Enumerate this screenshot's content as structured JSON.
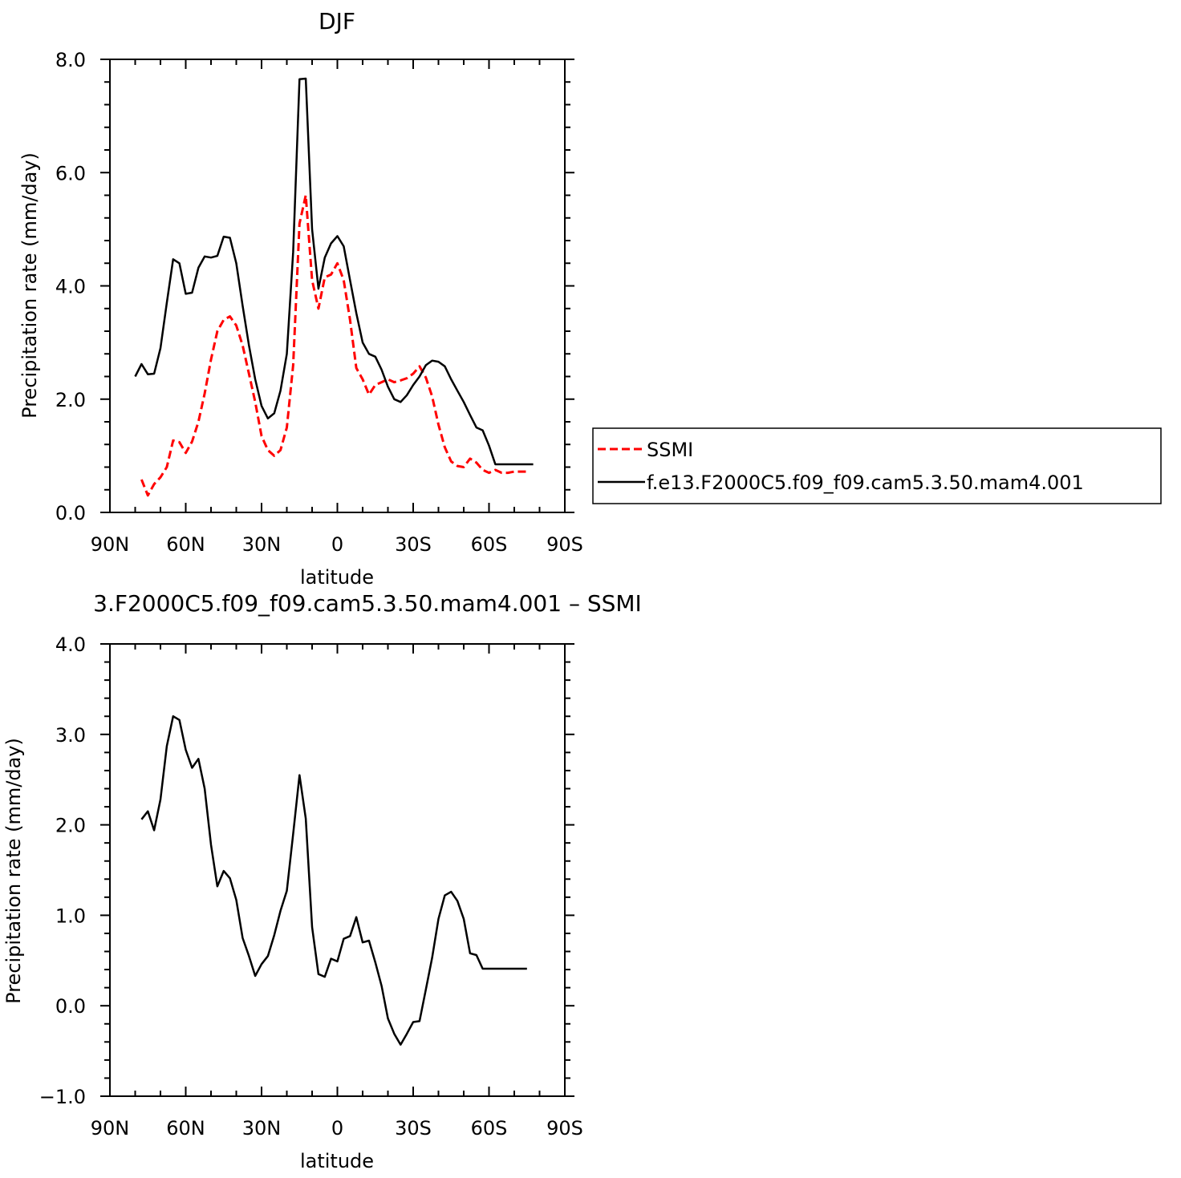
{
  "chart_data": [
    {
      "type": "line",
      "title": "DJF",
      "xlabel": "latitude",
      "ylabel": "Precipitation rate (mm/day)",
      "xlim": [
        90,
        -90
      ],
      "ylim": [
        0,
        8
      ],
      "x_tick_values": [
        90,
        60,
        30,
        0,
        -30,
        -60,
        -90
      ],
      "x_tick_labels": [
        "90N",
        "60N",
        "30N",
        "0",
        "30S",
        "60S",
        "90S"
      ],
      "y_tick_values": [
        0,
        2,
        4,
        6,
        8
      ],
      "y_tick_labels": [
        "0.0",
        "2.0",
        "4.0",
        "6.0",
        "8.0"
      ],
      "legend_position": "right",
      "series": [
        {
          "name": "SSMI",
          "color": "#ff0000",
          "dash": "dashed",
          "x": [
            77.5,
            75,
            72.5,
            70,
            67.5,
            65,
            62.5,
            60,
            57.5,
            55,
            52.5,
            50,
            47.5,
            45,
            42.5,
            40,
            37.5,
            35,
            32.5,
            30,
            27.5,
            25,
            22.5,
            20,
            17.5,
            15,
            12.5,
            10,
            7.5,
            5,
            2.5,
            0,
            -2.5,
            -5,
            -7.5,
            -10,
            -12.5,
            -15,
            -17.5,
            -20,
            -22.5,
            -25,
            -27.5,
            -30,
            -32.5,
            -35,
            -37.5,
            -40,
            -42.5,
            -45,
            -47.5,
            -50,
            -52.5,
            -55,
            -57.5,
            -60,
            -62.5,
            -65,
            -67.5,
            -70,
            -72.5,
            -75
          ],
          "y": [
            0.58,
            0.3,
            0.5,
            0.62,
            0.8,
            1.27,
            1.24,
            1.05,
            1.25,
            1.6,
            2.1,
            2.7,
            3.2,
            3.4,
            3.46,
            3.3,
            2.95,
            2.45,
            1.95,
            1.35,
            1.1,
            1.0,
            1.1,
            1.5,
            2.6,
            5.1,
            5.6,
            4.1,
            3.6,
            4.15,
            4.2,
            4.4,
            4.1,
            3.4,
            2.55,
            2.35,
            2.08,
            2.25,
            2.3,
            2.35,
            2.3,
            2.33,
            2.37,
            2.45,
            2.58,
            2.38,
            2.05,
            1.55,
            1.15,
            0.9,
            0.82,
            0.8,
            0.95,
            0.88,
            0.75,
            0.7,
            0.75,
            0.7,
            0.7,
            0.72,
            0.72,
            0.72
          ]
        },
        {
          "name": "f.e13.F2000C5.f09_f09.cam5.3.50.mam4.001",
          "color": "#000000",
          "dash": "solid",
          "x": [
            80,
            77.5,
            75,
            72.5,
            70,
            67.5,
            65,
            62.5,
            60,
            57.5,
            55,
            52.5,
            50,
            47.5,
            45,
            42.5,
            40,
            37.5,
            35,
            32.5,
            30,
            27.5,
            25,
            22.5,
            20,
            17.5,
            15,
            12.5,
            10,
            7.5,
            5,
            2.5,
            0,
            -2.5,
            -5,
            -7.5,
            -10,
            -12.5,
            -15,
            -17.5,
            -20,
            -22.5,
            -25,
            -27.5,
            -30,
            -32.5,
            -35,
            -37.5,
            -40,
            -42.5,
            -45,
            -47.5,
            -50,
            -52.5,
            -55,
            -57.5,
            -60,
            -62.5,
            -65,
            -67.5,
            -70,
            -72.5,
            -75,
            -77.5
          ],
          "y": [
            2.4,
            2.62,
            2.44,
            2.45,
            2.9,
            3.7,
            4.47,
            4.4,
            3.86,
            3.88,
            4.32,
            4.52,
            4.5,
            4.53,
            4.87,
            4.85,
            4.4,
            3.65,
            2.95,
            2.35,
            1.88,
            1.66,
            1.75,
            2.15,
            2.8,
            4.6,
            7.65,
            7.66,
            5.0,
            3.95,
            4.5,
            4.75,
            4.88,
            4.7,
            4.1,
            3.52,
            3.0,
            2.8,
            2.75,
            2.52,
            2.22,
            2.0,
            1.95,
            2.07,
            2.25,
            2.4,
            2.6,
            2.68,
            2.66,
            2.58,
            2.35,
            2.15,
            1.95,
            1.72,
            1.5,
            1.45,
            1.18,
            0.85,
            0.85,
            0.85,
            0.85,
            0.85,
            0.85,
            0.85
          ]
        }
      ]
    },
    {
      "type": "line",
      "title": "3.F2000C5.f09_f09.cam5.3.50.mam4.001 – SSMI",
      "xlabel": "latitude",
      "ylabel": "Precipitation rate (mm/day)",
      "xlim": [
        90,
        -90
      ],
      "ylim": [
        -1,
        4
      ],
      "x_tick_values": [
        90,
        60,
        30,
        0,
        -30,
        -60,
        -90
      ],
      "x_tick_labels": [
        "90N",
        "60N",
        "30N",
        "0",
        "30S",
        "60S",
        "90S"
      ],
      "y_tick_values": [
        -1,
        0,
        1,
        2,
        3,
        4
      ],
      "y_tick_labels": [
        "−1.0",
        "0.0",
        "1.0",
        "2.0",
        "3.0",
        "4.0"
      ],
      "series": [
        {
          "color": "#000000",
          "dash": "solid",
          "x": [
            77.5,
            75,
            72.5,
            70,
            67.5,
            65,
            62.5,
            60,
            57.5,
            55,
            52.5,
            50,
            47.5,
            45,
            42.5,
            40,
            37.5,
            35,
            32.5,
            30,
            27.5,
            25,
            22.5,
            20,
            17.5,
            15,
            12.5,
            10,
            7.5,
            5,
            2.5,
            0,
            -2.5,
            -5,
            -7.5,
            -10,
            -12.5,
            -15,
            -17.5,
            -20,
            -22.5,
            -25,
            -27.5,
            -30,
            -32.5,
            -35,
            -37.5,
            -40,
            -42.5,
            -45,
            -47.5,
            -50,
            -52.5,
            -55,
            -57.5,
            -60,
            -62.5,
            -65,
            -67.5,
            -70,
            -72.5,
            -75
          ],
          "y": [
            2.06,
            2.15,
            1.94,
            2.28,
            2.87,
            3.2,
            3.16,
            2.83,
            2.63,
            2.73,
            2.4,
            1.78,
            1.32,
            1.49,
            1.41,
            1.17,
            0.75,
            0.55,
            0.33,
            0.46,
            0.55,
            0.78,
            1.05,
            1.27,
            1.9,
            2.55,
            2.07,
            0.87,
            0.35,
            0.32,
            0.52,
            0.49,
            0.74,
            0.77,
            0.98,
            0.7,
            0.72,
            0.48,
            0.22,
            -0.14,
            -0.31,
            -0.43,
            -0.31,
            -0.18,
            -0.17,
            0.18,
            0.53,
            0.96,
            1.22,
            1.26,
            1.16,
            0.96,
            0.58,
            0.56,
            0.41,
            0.41,
            0.41,
            0.41,
            0.41,
            0.41,
            0.41,
            0.41
          ]
        }
      ]
    }
  ]
}
